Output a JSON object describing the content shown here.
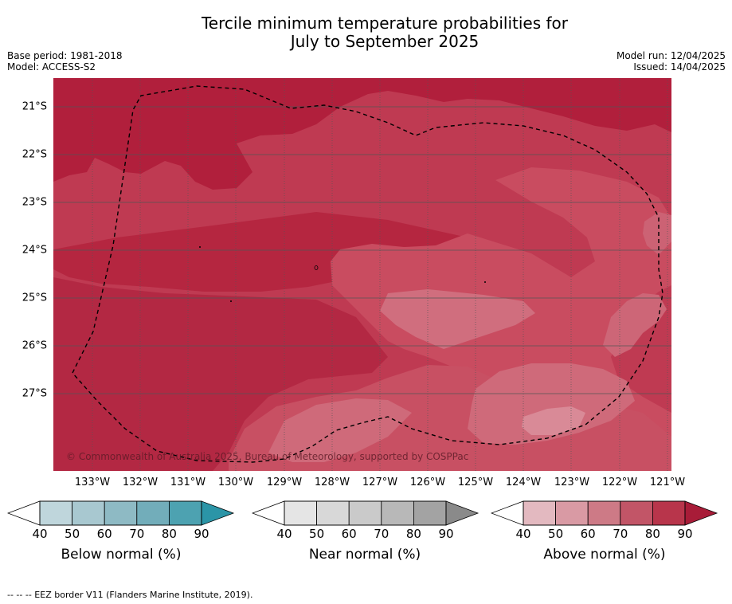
{
  "title_line1": "Tercile minimum temperature probabilities for",
  "title_line2": "July to September 2025",
  "base_period": "Base period: 1981-2018",
  "model": "Model: ACCESS-S2",
  "model_run": "Model run: 12/04/2025",
  "issued": "Issued: 14/04/2025",
  "copyright": "© Commonwealth of Australia 2025, Bureau of Meteorology, supported by COSPPac",
  "latitudes": [
    "21°S",
    "22°S",
    "23°S",
    "24°S",
    "25°S",
    "26°S",
    "27°S"
  ],
  "longitudes": [
    "133°W",
    "132°W",
    "131°W",
    "130°W",
    "129°W",
    "128°W",
    "127°W",
    "126°W",
    "125°W",
    "124°W",
    "123°W",
    "122°W",
    "121°W"
  ],
  "colorbars": [
    {
      "label": "Below normal (%)",
      "ticks": [
        "40",
        "50",
        "60",
        "70",
        "80",
        "90"
      ],
      "colors": [
        "#bfd6dc",
        "#a8c8d0",
        "#8ebac4",
        "#72adba",
        "#4da2b1",
        "#2b95a7"
      ]
    },
    {
      "label": "Near normal (%)",
      "ticks": [
        "40",
        "50",
        "60",
        "70",
        "80",
        "90"
      ],
      "colors": [
        "#e5e5e5",
        "#d8d8d8",
        "#cacaca",
        "#b8b8b8",
        "#a3a3a3",
        "#8a8a8a"
      ]
    },
    {
      "label": "Above normal (%)",
      "ticks": [
        "40",
        "50",
        "60",
        "70",
        "80",
        "90"
      ],
      "colors": [
        "#e3b9c0",
        "#d99aa4",
        "#cd7a86",
        "#c25567",
        "#b8354b",
        "#a81c38"
      ]
    }
  ],
  "legend_note": "--  --  -- EEZ border V11 (Flanders Marine Institute, 2019)."
}
